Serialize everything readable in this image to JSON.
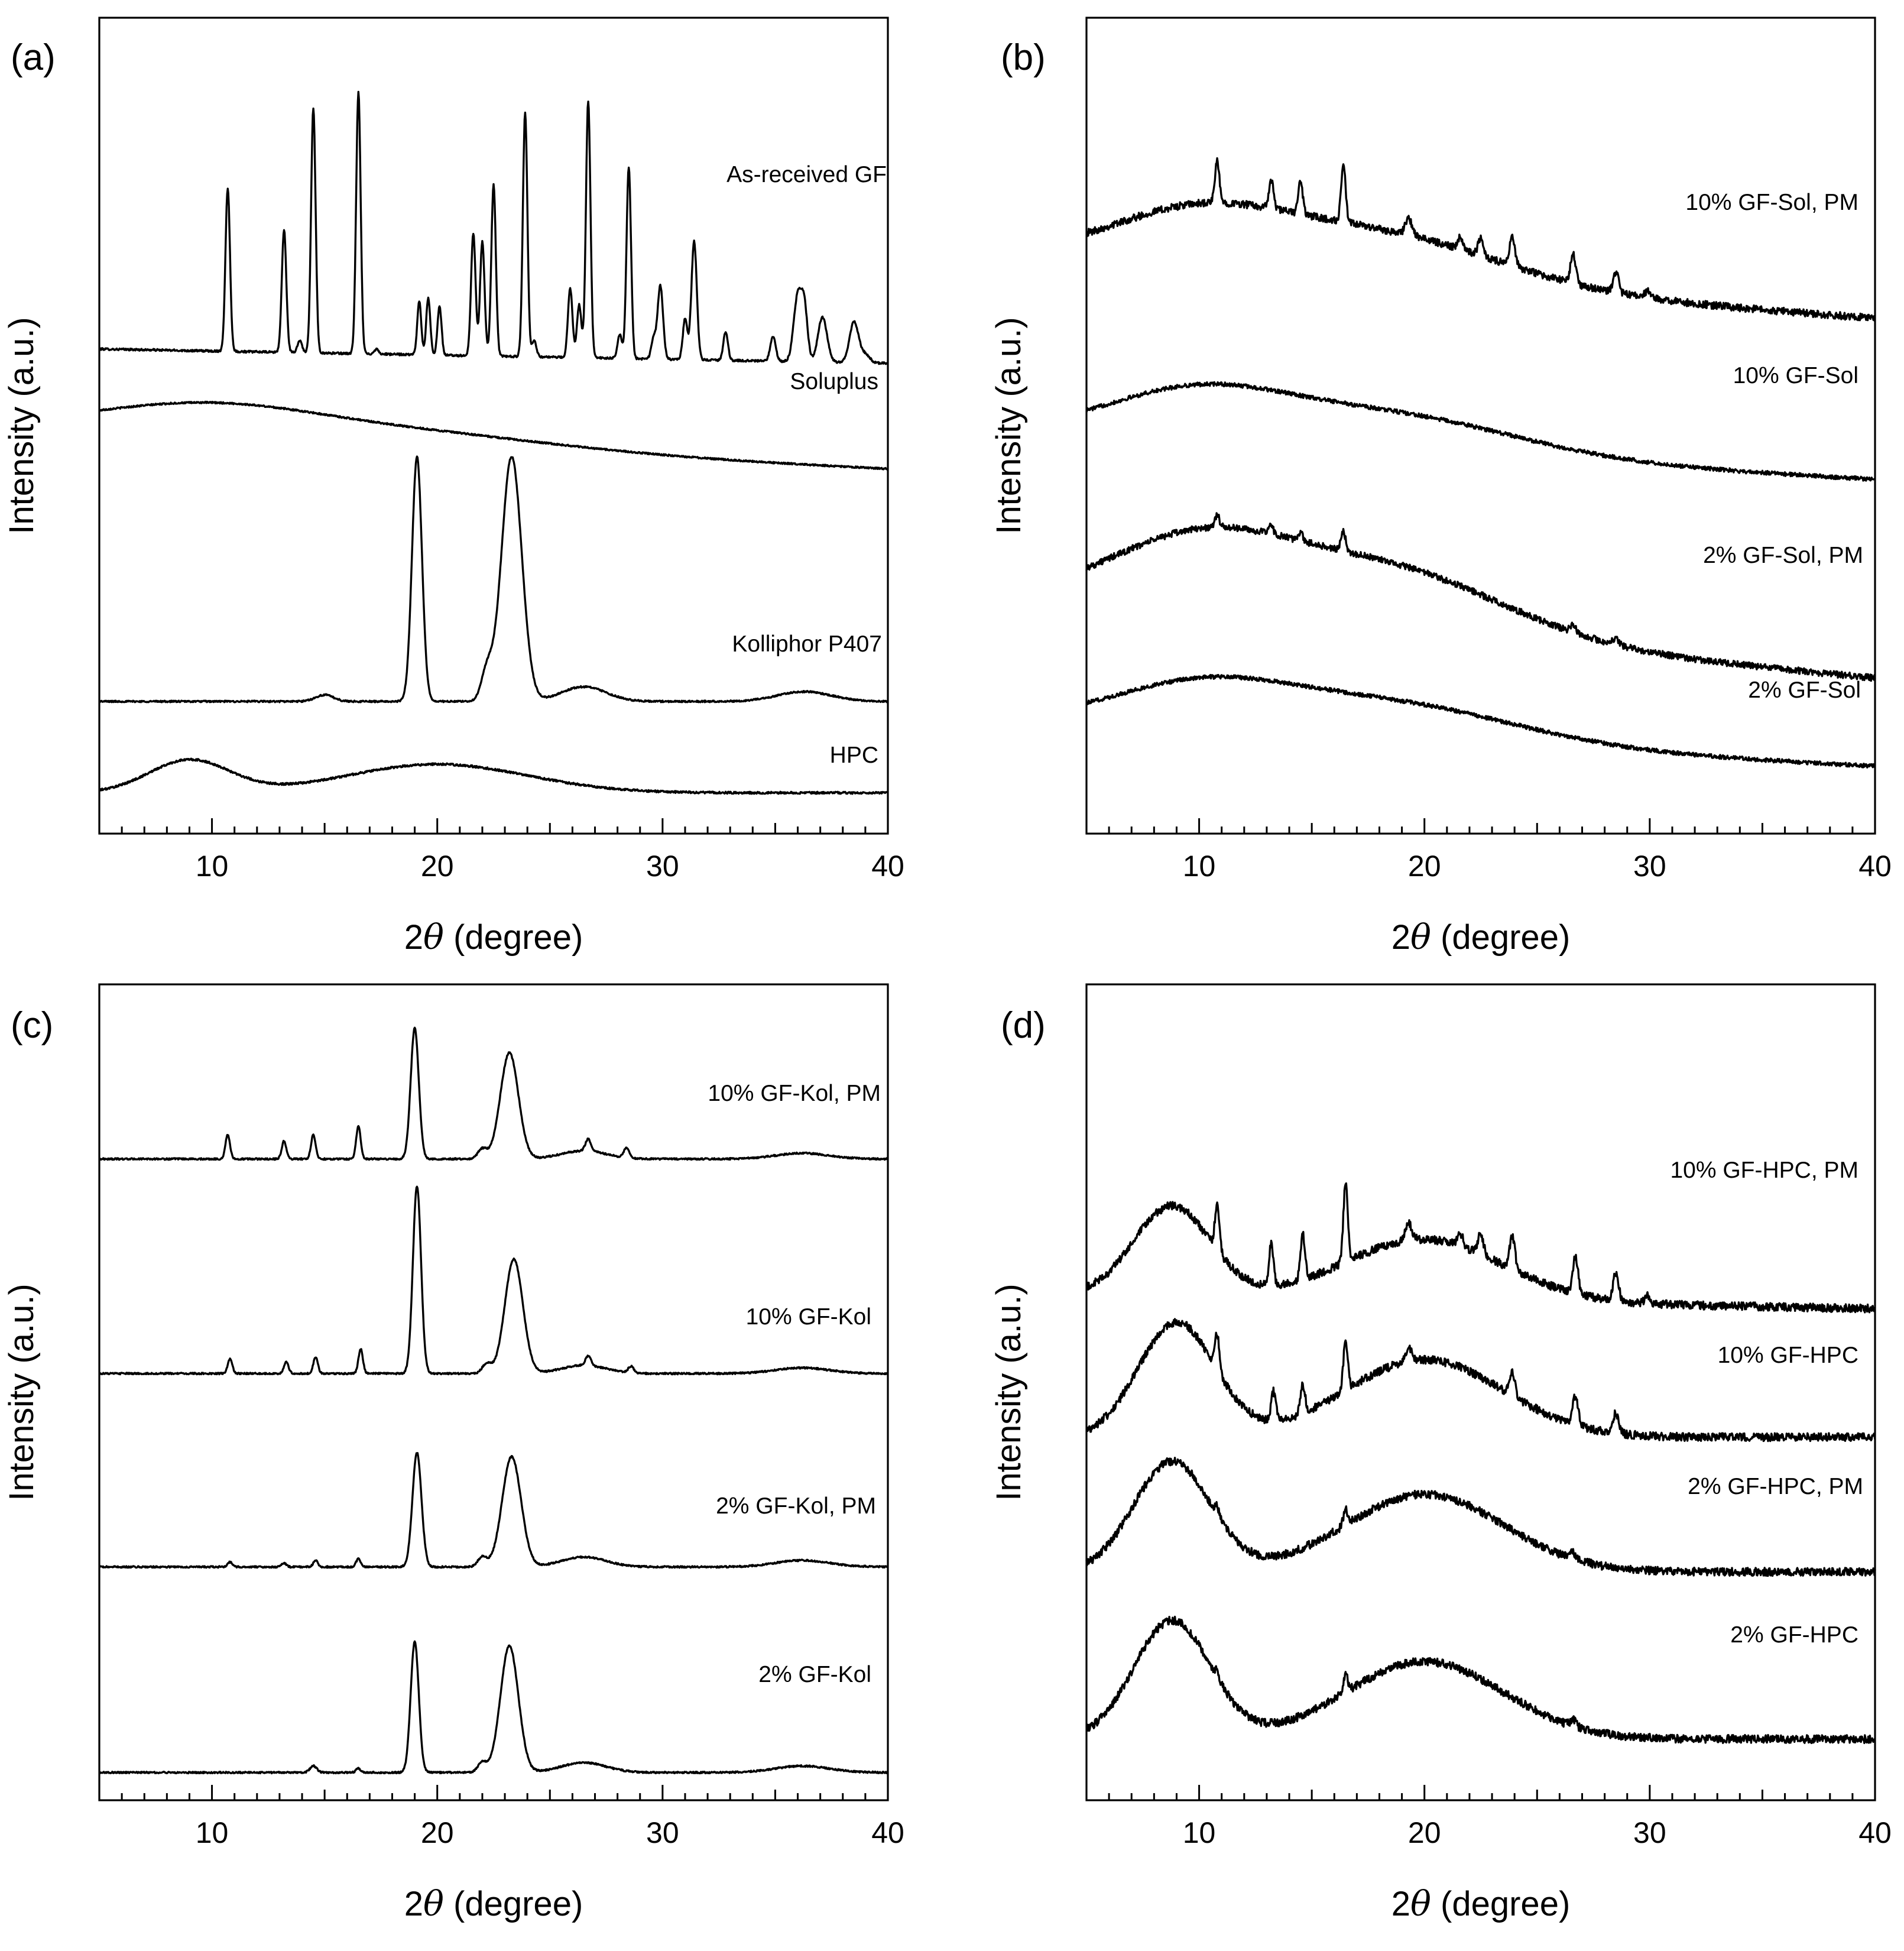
{
  "chart_data": [
    {
      "id": "a",
      "panel_label": "(a)",
      "type": "line",
      "xlabel_prefix": "2",
      "xlabel_symbol": "θ",
      "xlabel_suffix": " (degree)",
      "ylabel": "Intensity (a.u.)",
      "xlim": [
        5,
        40
      ],
      "xticks": [
        10,
        20,
        30,
        40
      ],
      "xtick_labels": [
        "10",
        "20",
        "30",
        "40"
      ],
      "series": [
        {
          "name": "As-received GF",
          "baseline": 0.594,
          "slope": 0.0005,
          "noise": 0.0025,
          "broad": [],
          "peaks": [
            [
              10.7,
              0.2,
              0.1
            ],
            [
              13.2,
              0.15,
              0.1
            ],
            [
              13.9,
              0.015,
              0.1
            ],
            [
              14.5,
              0.3,
              0.1
            ],
            [
              16.5,
              0.32,
              0.1
            ],
            [
              17.3,
              0.006,
              0.1
            ],
            [
              19.2,
              0.065,
              0.09
            ],
            [
              19.6,
              0.07,
              0.09
            ],
            [
              20.1,
              0.06,
              0.09
            ],
            [
              21.6,
              0.15,
              0.1
            ],
            [
              22.0,
              0.14,
              0.1
            ],
            [
              22.5,
              0.21,
              0.1
            ],
            [
              23.9,
              0.3,
              0.1
            ],
            [
              24.3,
              0.02,
              0.1
            ],
            [
              25.9,
              0.085,
              0.1
            ],
            [
              26.3,
              0.065,
              0.1
            ],
            [
              26.7,
              0.315,
              0.1
            ],
            [
              28.1,
              0.03,
              0.1
            ],
            [
              28.5,
              0.235,
              0.1
            ],
            [
              29.6,
              0.025,
              0.1
            ],
            [
              29.9,
              0.09,
              0.12
            ],
            [
              31.0,
              0.05,
              0.1
            ],
            [
              31.4,
              0.145,
              0.12
            ],
            [
              32.8,
              0.035,
              0.1
            ],
            [
              34.9,
              0.03,
              0.12
            ],
            [
              36.0,
              0.08,
              0.18
            ],
            [
              36.3,
              0.06,
              0.14
            ],
            [
              37.1,
              0.055,
              0.2
            ],
            [
              38.5,
              0.05,
              0.2
            ],
            [
              39.0,
              0.01,
              0.2
            ]
          ]
        },
        {
          "name": "Soluplus",
          "baseline": 0.496,
          "slope": 0.0014,
          "noise": 0.002,
          "broad": [
            [
              9.8,
              0.035,
              5.0
            ],
            [
              19.5,
              0.015,
              6.0
            ]
          ],
          "peaks": []
        },
        {
          "name": "Kolliphor P407",
          "baseline": 0.162,
          "slope": 0.0,
          "noise": 0.002,
          "broad": [
            [
              26.5,
              0.018,
              1.0
            ],
            [
              36.3,
              0.012,
              1.2
            ]
          ],
          "peaks": [
            [
              19.1,
              0.3,
              0.22
            ],
            [
              23.3,
              0.3,
              0.45
            ],
            [
              22.2,
              0.035,
              0.25
            ],
            [
              15.0,
              0.008,
              0.4
            ]
          ]
        },
        {
          "name": "HPC",
          "baseline": 0.05,
          "slope": 0.0,
          "noise": 0.0025,
          "broad": [
            [
              9.0,
              0.04,
              1.8
            ],
            [
              20.0,
              0.035,
              4.0
            ]
          ],
          "peaks": []
        }
      ]
    },
    {
      "id": "b",
      "panel_label": "(b)",
      "type": "line",
      "xlabel_prefix": "2",
      "xlabel_symbol": "θ",
      "xlabel_suffix": " (degree)",
      "ylabel": "Intensity (a.u.)",
      "xlim": [
        5,
        40
      ],
      "xticks": [
        10,
        20,
        30,
        40
      ],
      "xtick_labels": [
        "10",
        "20",
        "30",
        "40"
      ],
      "series": [
        {
          "name": "10% GF-Sol, PM",
          "baseline": 0.705,
          "slope": 0.0021,
          "noise": 0.009,
          "broad": [
            [
              10.0,
              0.065,
              4.0
            ],
            [
              18.5,
              0.055,
              5.0
            ]
          ],
          "peaks": [
            [
              10.8,
              0.05,
              0.1
            ],
            [
              13.2,
              0.035,
              0.1
            ],
            [
              14.5,
              0.04,
              0.1
            ],
            [
              16.4,
              0.07,
              0.1
            ],
            [
              19.3,
              0.02,
              0.15
            ],
            [
              21.6,
              0.015,
              0.12
            ],
            [
              22.5,
              0.02,
              0.12
            ],
            [
              23.9,
              0.035,
              0.12
            ],
            [
              26.6,
              0.035,
              0.12
            ],
            [
              28.5,
              0.025,
              0.12
            ],
            [
              29.9,
              0.008,
              0.12
            ]
          ]
        },
        {
          "name": "10% GF-Sol",
          "baseline": 0.49,
          "slope": 0.0016,
          "noise": 0.005,
          "broad": [
            [
              9.8,
              0.055,
              4.0
            ],
            [
              18.5,
              0.045,
              5.5
            ]
          ],
          "peaks": []
        },
        {
          "name": "2% GF-Sol, PM",
          "baseline": 0.285,
          "slope": 0.0027,
          "noise": 0.008,
          "broad": [
            [
              10.0,
              0.085,
              4.0
            ],
            [
              18.5,
              0.075,
              5.0
            ]
          ],
          "peaks": [
            [
              10.8,
              0.015,
              0.1
            ],
            [
              13.2,
              0.01,
              0.1
            ],
            [
              14.5,
              0.01,
              0.1
            ],
            [
              16.4,
              0.025,
              0.1
            ],
            [
              26.6,
              0.01,
              0.12
            ],
            [
              28.5,
              0.008,
              0.12
            ]
          ]
        },
        {
          "name": "2% GF-Sol",
          "baseline": 0.135,
          "slope": 0.0015,
          "noise": 0.005,
          "broad": [
            [
              10.0,
              0.05,
              4.0
            ],
            [
              18.5,
              0.045,
              5.5
            ]
          ],
          "peaks": []
        }
      ]
    },
    {
      "id": "c",
      "panel_label": "(c)",
      "type": "line",
      "xlabel_prefix": "2",
      "xlabel_symbol": "θ",
      "xlabel_suffix": " (degree)",
      "ylabel": "Intensity (a.u.)",
      "xlim": [
        5,
        40
      ],
      "xticks": [
        10,
        20,
        30,
        40
      ],
      "xtick_labels": [
        "10",
        "20",
        "30",
        "40"
      ],
      "series": [
        {
          "name": "10% GF-Kol, PM",
          "baseline": 0.786,
          "slope": 0.0,
          "noise": 0.002,
          "broad": [
            [
              26.5,
              0.01,
              1.0
            ],
            [
              36.2,
              0.007,
              1.2
            ]
          ],
          "peaks": [
            [
              10.7,
              0.03,
              0.1
            ],
            [
              13.2,
              0.022,
              0.1
            ],
            [
              14.5,
              0.03,
              0.1
            ],
            [
              16.5,
              0.04,
              0.1
            ],
            [
              19.0,
              0.16,
              0.18
            ],
            [
              23.2,
              0.13,
              0.4
            ],
            [
              22.0,
              0.012,
              0.2
            ],
            [
              26.7,
              0.015,
              0.12
            ],
            [
              28.4,
              0.012,
              0.12
            ]
          ]
        },
        {
          "name": "10% GF-Kol",
          "baseline": 0.523,
          "slope": 0.0,
          "noise": 0.002,
          "broad": [
            [
              26.5,
              0.01,
              1.0
            ],
            [
              36.2,
              0.007,
              1.2
            ]
          ],
          "peaks": [
            [
              10.8,
              0.018,
              0.1
            ],
            [
              13.3,
              0.014,
              0.1
            ],
            [
              14.6,
              0.02,
              0.1
            ],
            [
              16.6,
              0.03,
              0.1
            ],
            [
              19.1,
              0.23,
              0.18
            ],
            [
              23.4,
              0.14,
              0.4
            ],
            [
              22.2,
              0.012,
              0.2
            ],
            [
              26.7,
              0.012,
              0.12
            ],
            [
              28.6,
              0.008,
              0.12
            ]
          ]
        },
        {
          "name": "2% GF-Kol, PM",
          "baseline": 0.286,
          "slope": 0.0,
          "noise": 0.002,
          "broad": [
            [
              26.5,
              0.012,
              1.0
            ],
            [
              36.2,
              0.008,
              1.2
            ]
          ],
          "peaks": [
            [
              10.8,
              0.006,
              0.1
            ],
            [
              13.2,
              0.005,
              0.1
            ],
            [
              14.6,
              0.008,
              0.1
            ],
            [
              16.5,
              0.01,
              0.1
            ],
            [
              19.1,
              0.14,
              0.2
            ],
            [
              23.3,
              0.135,
              0.42
            ],
            [
              22.0,
              0.012,
              0.2
            ]
          ]
        },
        {
          "name": "2% GF-Kol",
          "baseline": 0.034,
          "slope": 0.0,
          "noise": 0.002,
          "broad": [
            [
              26.5,
              0.012,
              1.0
            ],
            [
              36.2,
              0.008,
              1.2
            ]
          ],
          "peaks": [
            [
              14.5,
              0.008,
              0.15
            ],
            [
              16.5,
              0.005,
              0.1
            ],
            [
              19.0,
              0.16,
              0.18
            ],
            [
              23.2,
              0.155,
              0.4
            ],
            [
              22.0,
              0.012,
              0.2
            ]
          ]
        }
      ]
    },
    {
      "id": "d",
      "panel_label": "(d)",
      "type": "line",
      "xlabel_prefix": "2",
      "xlabel_symbol": "θ",
      "xlabel_suffix": " (degree)",
      "ylabel": "Intensity (a.u.)",
      "xlim": [
        5,
        40
      ],
      "xticks": [
        10,
        20,
        30,
        40
      ],
      "xtick_labels": [
        "10",
        "20",
        "30",
        "40"
      ],
      "series": [
        {
          "name": "10% GF-HPC, PM",
          "baseline": 0.62,
          "slope": 0.0005,
          "noise": 0.01,
          "broad": [
            [
              8.8,
              0.11,
              1.7
            ],
            [
              20.0,
              0.075,
              3.5
            ]
          ],
          "peaks": [
            [
              10.8,
              0.055,
              0.1
            ],
            [
              13.2,
              0.05,
              0.1
            ],
            [
              14.6,
              0.055,
              0.1
            ],
            [
              16.5,
              0.095,
              0.1
            ],
            [
              19.3,
              0.02,
              0.15
            ],
            [
              21.6,
              0.015,
              0.12
            ],
            [
              22.5,
              0.025,
              0.12
            ],
            [
              23.9,
              0.04,
              0.12
            ],
            [
              26.7,
              0.045,
              0.12
            ],
            [
              28.5,
              0.035,
              0.12
            ],
            [
              29.9,
              0.01,
              0.12
            ]
          ]
        },
        {
          "name": "10% GF-HPC",
          "baseline": 0.445,
          "slope": 0.0,
          "noise": 0.01,
          "broad": [
            [
              9.0,
              0.14,
              1.7
            ],
            [
              20.0,
              0.095,
              3.5
            ]
          ],
          "peaks": [
            [
              10.8,
              0.045,
              0.1
            ],
            [
              13.3,
              0.035,
              0.1
            ],
            [
              14.6,
              0.035,
              0.1
            ],
            [
              16.5,
              0.06,
              0.1
            ],
            [
              19.3,
              0.015,
              0.15
            ],
            [
              23.9,
              0.03,
              0.12
            ],
            [
              26.7,
              0.035,
              0.12
            ],
            [
              28.5,
              0.025,
              0.12
            ]
          ]
        },
        {
          "name": "2% GF-HPC, PM",
          "baseline": 0.28,
          "slope": 0.0,
          "noise": 0.01,
          "broad": [
            [
              8.8,
              0.135,
              1.7
            ],
            [
              20.0,
              0.095,
              3.5
            ]
          ],
          "peaks": [
            [
              10.8,
              0.01,
              0.1
            ],
            [
              16.5,
              0.018,
              0.1
            ],
            [
              26.6,
              0.008,
              0.12
            ]
          ]
        },
        {
          "name": "2% GF-HPC",
          "baseline": 0.075,
          "slope": 0.0,
          "noise": 0.01,
          "broad": [
            [
              8.8,
              0.145,
              1.7
            ],
            [
              20.0,
              0.095,
              3.5
            ]
          ],
          "peaks": [
            [
              10.8,
              0.008,
              0.1
            ],
            [
              16.5,
              0.022,
              0.1
            ],
            [
              26.6,
              0.008,
              0.12
            ]
          ]
        }
      ]
    }
  ]
}
